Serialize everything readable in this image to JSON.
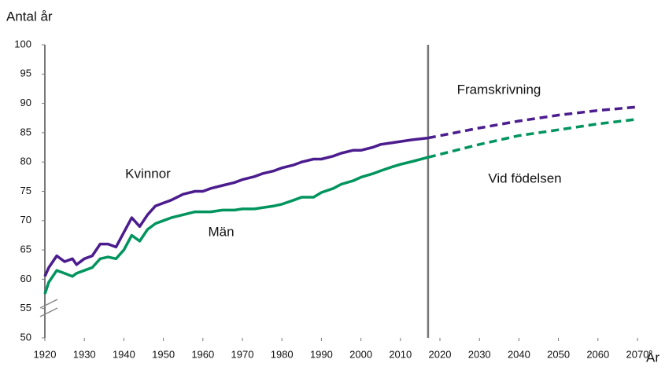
{
  "chart_data": {
    "type": "line",
    "y_label": "Antal år",
    "x_label": "År",
    "xlim": [
      1920,
      2070
    ],
    "ylim": [
      50,
      100
    ],
    "xticks": [
      1920,
      1930,
      1940,
      1950,
      1960,
      1970,
      1980,
      1990,
      2000,
      2010,
      2020,
      2030,
      2040,
      2050,
      2060,
      2070
    ],
    "yticks": [
      50,
      55,
      60,
      65,
      70,
      75,
      80,
      85,
      90,
      95,
      100
    ],
    "projection_start": 2017,
    "annotations": [
      "Framskrivning",
      "Vid födelsen"
    ],
    "series": [
      {
        "name": "Kvinnor",
        "color": "#4b1c8e",
        "dashed": false,
        "x": [
          1920,
          1921,
          1923,
          1925,
          1927,
          1928,
          1930,
          1932,
          1934,
          1936,
          1938,
          1940,
          1942,
          1944,
          1946,
          1948,
          1950,
          1952,
          1955,
          1958,
          1960,
          1962,
          1965,
          1968,
          1970,
          1973,
          1975,
          1978,
          1980,
          1983,
          1985,
          1988,
          1990,
          1993,
          1995,
          1998,
          2000,
          2003,
          2005,
          2008,
          2010,
          2013,
          2017
        ],
        "values": [
          60.5,
          62,
          64,
          63,
          63.5,
          62.5,
          63.5,
          64,
          66,
          66,
          65.5,
          68,
          70.5,
          69,
          71,
          72.5,
          73,
          73.5,
          74.5,
          75,
          75,
          75.5,
          76,
          76.5,
          77,
          77.5,
          78,
          78.5,
          79,
          79.5,
          80,
          80.5,
          80.5,
          81,
          81.5,
          82,
          82,
          82.5,
          83,
          83.3,
          83.5,
          83.8,
          84.1
        ]
      },
      {
        "name": "Män",
        "color": "#00945e",
        "dashed": false,
        "x": [
          1920,
          1921,
          1923,
          1925,
          1927,
          1928,
          1930,
          1932,
          1934,
          1936,
          1938,
          1940,
          1942,
          1944,
          1946,
          1948,
          1950,
          1952,
          1955,
          1958,
          1960,
          1962,
          1965,
          1968,
          1970,
          1973,
          1975,
          1978,
          1980,
          1983,
          1985,
          1988,
          1990,
          1993,
          1995,
          1998,
          2000,
          2003,
          2005,
          2008,
          2010,
          2013,
          2017
        ],
        "values": [
          57.5,
          59.5,
          61.5,
          61,
          60.5,
          61,
          61.5,
          62,
          63.5,
          63.8,
          63.5,
          65,
          67.5,
          66.5,
          68.5,
          69.5,
          70,
          70.5,
          71,
          71.5,
          71.5,
          71.5,
          71.8,
          71.8,
          72,
          72,
          72.2,
          72.5,
          72.8,
          73.5,
          74,
          74,
          74.8,
          75.5,
          76.2,
          76.8,
          77.4,
          78,
          78.5,
          79.2,
          79.6,
          80.1,
          80.8
        ]
      },
      {
        "color": "#4b1c8e",
        "dashed": true,
        "x": [
          2017,
          2030,
          2040,
          2050,
          2060,
          2070
        ],
        "values": [
          84.1,
          85.8,
          87,
          88,
          88.8,
          89.4
        ]
      },
      {
        "color": "#00945e",
        "dashed": true,
        "x": [
          2017,
          2030,
          2040,
          2050,
          2060,
          2070
        ],
        "values": [
          80.8,
          83,
          84.5,
          85.5,
          86.5,
          87.3
        ]
      }
    ]
  }
}
